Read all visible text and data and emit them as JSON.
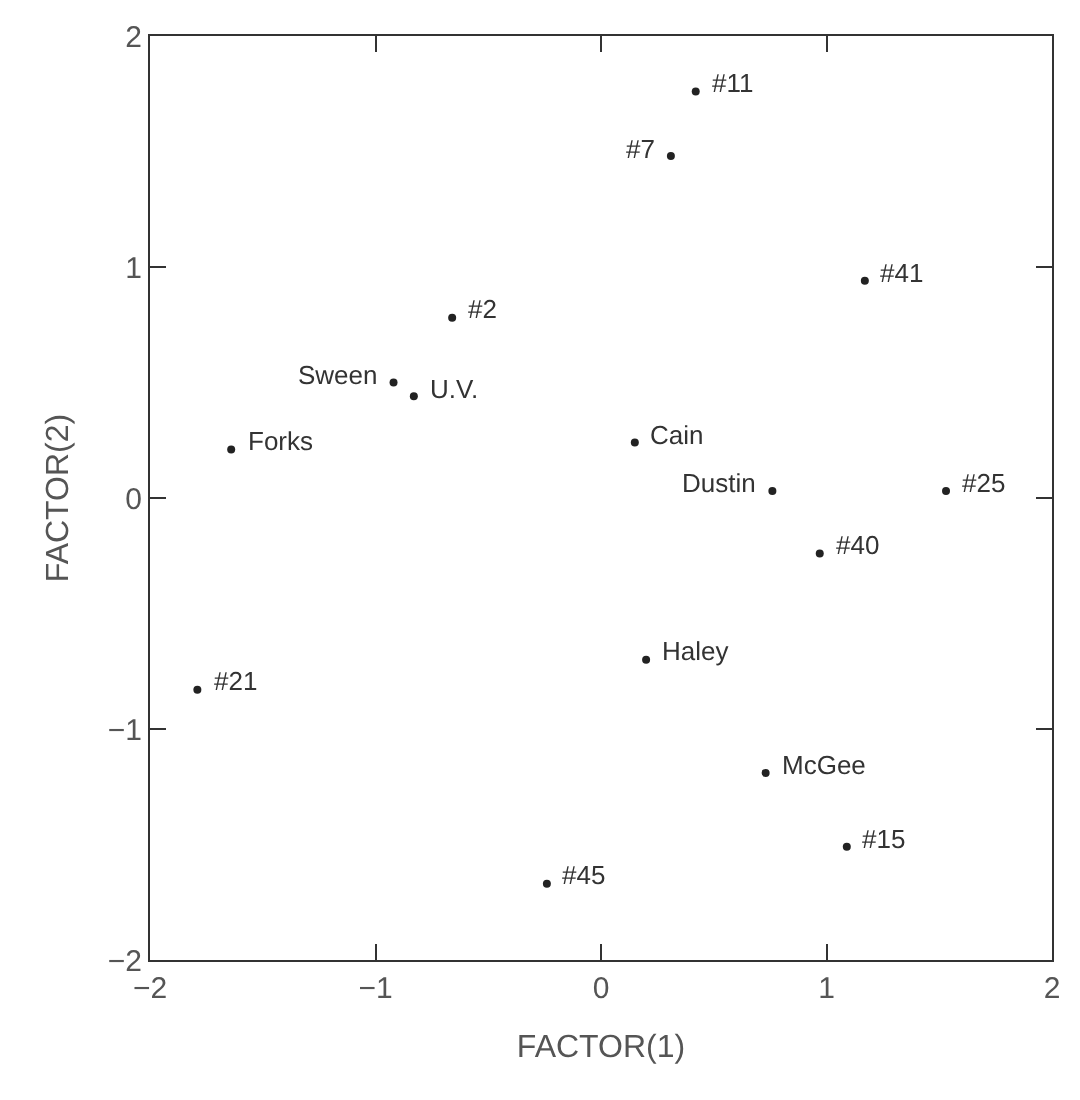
{
  "chart_data": {
    "type": "scatter",
    "xlabel": "FACTOR(1)",
    "ylabel": "FACTOR(2)",
    "xlim": [
      -2,
      2
    ],
    "ylim": [
      -2,
      2
    ],
    "xticks": [
      -2,
      -1,
      0,
      1,
      2
    ],
    "yticks": [
      -2,
      -1,
      0,
      1,
      2
    ],
    "marker": "circle",
    "series": [
      {
        "color": "#222222",
        "x": [
          0.42,
          0.31,
          1.17,
          -0.66,
          -0.92,
          -0.83,
          -1.64,
          0.15,
          0.76,
          1.53,
          0.97,
          -1.79,
          0.2,
          0.73,
          1.09,
          -0.24
        ],
        "values": [
          1.76,
          1.48,
          0.94,
          0.78,
          0.5,
          0.44,
          0.21,
          0.24,
          0.03,
          0.03,
          -0.24,
          -0.83,
          -0.7,
          -1.19,
          -1.51,
          -1.67
        ]
      }
    ],
    "annotations": [
      {
        "text": "#11",
        "x": 0.42,
        "y": 1.76
      },
      {
        "text": "#7",
        "x": 0.31,
        "y": 1.48
      },
      {
        "text": "#41",
        "x": 1.17,
        "y": 0.94
      },
      {
        "text": "#2",
        "x": -0.66,
        "y": 0.78
      },
      {
        "text": "Sween",
        "x": -0.92,
        "y": 0.5
      },
      {
        "text": "U.V.",
        "x": -0.83,
        "y": 0.44
      },
      {
        "text": "Forks",
        "x": -1.64,
        "y": 0.21
      },
      {
        "text": "Cain",
        "x": 0.15,
        "y": 0.24
      },
      {
        "text": "Dustin",
        "x": 0.76,
        "y": 0.03
      },
      {
        "text": "#25",
        "x": 1.53,
        "y": 0.03
      },
      {
        "text": "#40",
        "x": 0.97,
        "y": -0.24
      },
      {
        "text": "#21",
        "x": -1.79,
        "y": -0.83
      },
      {
        "text": "Haley",
        "x": 0.2,
        "y": -0.7
      },
      {
        "text": "McGee",
        "x": 0.73,
        "y": -1.19
      },
      {
        "text": "#15",
        "x": 1.09,
        "y": -1.51
      },
      {
        "text": "#45",
        "x": -0.24,
        "y": -1.67
      }
    ]
  }
}
